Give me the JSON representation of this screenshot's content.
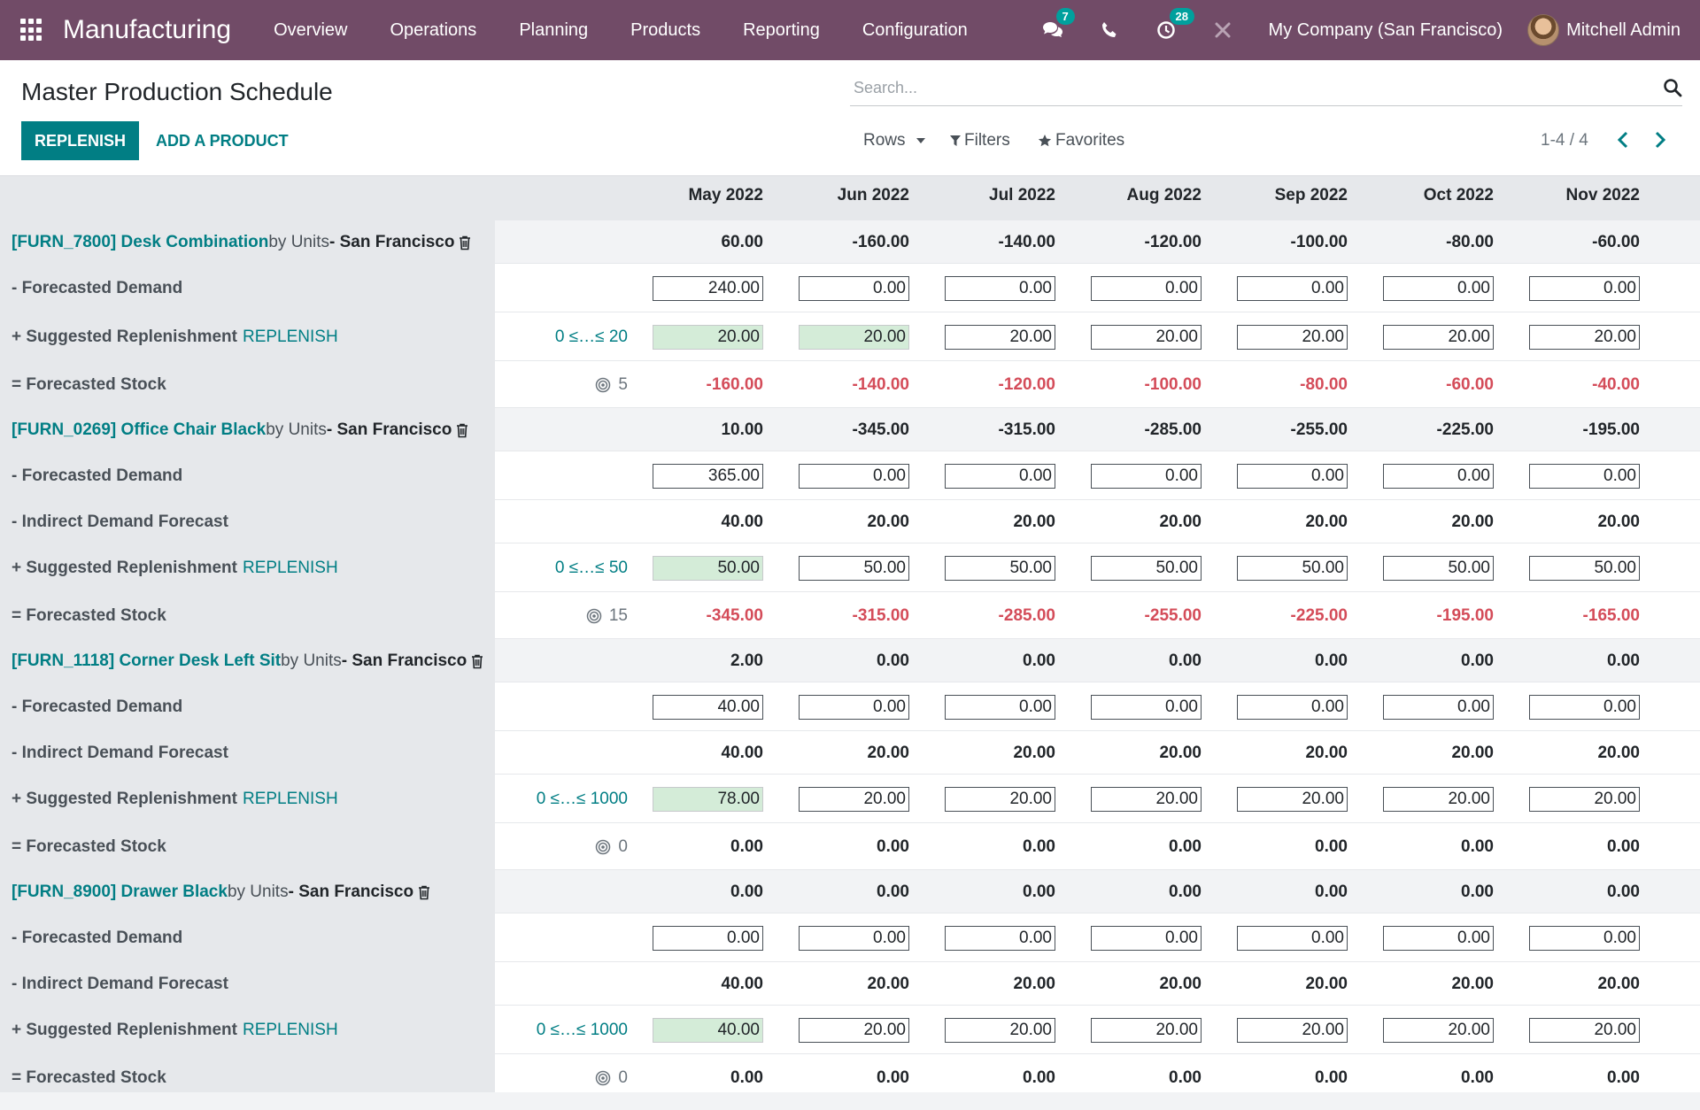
{
  "app": {
    "brand": "Manufacturing"
  },
  "menu": [
    "Overview",
    "Operations",
    "Planning",
    "Products",
    "Reporting",
    "Configuration"
  ],
  "systray": {
    "messages_badge": "7",
    "activities_badge": "28",
    "company": "My Company (San Francisco)",
    "user": "Mitchell Admin"
  },
  "control": {
    "title": "Master Production Schedule",
    "replenish": "REPLENISH",
    "add_product": "ADD A PRODUCT",
    "search_placeholder": "Search...",
    "rows": "Rows",
    "filters": "Filters",
    "favorites": "Favorites",
    "pager": "1-4 / 4"
  },
  "months": [
    "May 2022",
    "Jun 2022",
    "Jul 2022",
    "Aug 2022",
    "Sep 2022",
    "Oct 2022",
    "Nov 2022"
  ],
  "labels": {
    "by_units": "by Units",
    "location": "- San Francisco",
    "forecasted_demand": "- Forecasted Demand",
    "indirect_demand": "- Indirect Demand Forecast",
    "suggested": "+ Suggested Replenishment",
    "replenish_link": "REPLENISH",
    "forecasted_stock": "= Forecasted Stock"
  },
  "products": [
    {
      "code": "[FURN_7800] Desk Combination",
      "header_values": [
        "60.00",
        "-160.00",
        "-140.00",
        "-120.00",
        "-100.00",
        "-80.00",
        "-60.00"
      ],
      "demand": [
        "240.00",
        "0.00",
        "0.00",
        "0.00",
        "0.00",
        "0.00",
        "0.00"
      ],
      "indirect": null,
      "range": "0 ≤…≤ 20",
      "replenishment": [
        "20.00",
        "20.00",
        "20.00",
        "20.00",
        "20.00",
        "20.00",
        "20.00"
      ],
      "replenishment_green": [
        true,
        true,
        false,
        false,
        false,
        false,
        false
      ],
      "safety_stock": "5",
      "stock": [
        "-160.00",
        "-140.00",
        "-120.00",
        "-100.00",
        "-80.00",
        "-60.00",
        "-40.00"
      ]
    },
    {
      "code": "[FURN_0269] Office Chair Black",
      "header_values": [
        "10.00",
        "-345.00",
        "-315.00",
        "-285.00",
        "-255.00",
        "-225.00",
        "-195.00"
      ],
      "demand": [
        "365.00",
        "0.00",
        "0.00",
        "0.00",
        "0.00",
        "0.00",
        "0.00"
      ],
      "indirect": [
        "40.00",
        "20.00",
        "20.00",
        "20.00",
        "20.00",
        "20.00",
        "20.00"
      ],
      "range": "0 ≤…≤ 50",
      "replenishment": [
        "50.00",
        "50.00",
        "50.00",
        "50.00",
        "50.00",
        "50.00",
        "50.00"
      ],
      "replenishment_green": [
        true,
        false,
        false,
        false,
        false,
        false,
        false
      ],
      "safety_stock": "15",
      "stock": [
        "-345.00",
        "-315.00",
        "-285.00",
        "-255.00",
        "-225.00",
        "-195.00",
        "-165.00"
      ]
    },
    {
      "code": "[FURN_1118] Corner Desk Left Sit",
      "header_values": [
        "2.00",
        "0.00",
        "0.00",
        "0.00",
        "0.00",
        "0.00",
        "0.00"
      ],
      "demand": [
        "40.00",
        "0.00",
        "0.00",
        "0.00",
        "0.00",
        "0.00",
        "0.00"
      ],
      "indirect": [
        "40.00",
        "20.00",
        "20.00",
        "20.00",
        "20.00",
        "20.00",
        "20.00"
      ],
      "range": "0 ≤…≤ 1000",
      "replenishment": [
        "78.00",
        "20.00",
        "20.00",
        "20.00",
        "20.00",
        "20.00",
        "20.00"
      ],
      "replenishment_green": [
        true,
        false,
        false,
        false,
        false,
        false,
        false
      ],
      "safety_stock": "0",
      "stock": [
        "0.00",
        "0.00",
        "0.00",
        "0.00",
        "0.00",
        "0.00",
        "0.00"
      ]
    },
    {
      "code": "[FURN_8900] Drawer Black",
      "header_values": [
        "0.00",
        "0.00",
        "0.00",
        "0.00",
        "0.00",
        "0.00",
        "0.00"
      ],
      "demand": [
        "0.00",
        "0.00",
        "0.00",
        "0.00",
        "0.00",
        "0.00",
        "0.00"
      ],
      "indirect": [
        "40.00",
        "20.00",
        "20.00",
        "20.00",
        "20.00",
        "20.00",
        "20.00"
      ],
      "range": "0 ≤…≤ 1000",
      "replenishment": [
        "40.00",
        "20.00",
        "20.00",
        "20.00",
        "20.00",
        "20.00",
        "20.00"
      ],
      "replenishment_green": [
        true,
        false,
        false,
        false,
        false,
        false,
        false
      ],
      "safety_stock": "0",
      "stock": [
        "0.00",
        "0.00",
        "0.00",
        "0.00",
        "0.00",
        "0.00",
        "0.00"
      ]
    }
  ],
  "icons": {
    "apps": "apps-grid-icon",
    "messages": "chat-icon",
    "phone": "phone-icon",
    "activities": "clock-icon",
    "tools": "debug-tools-icon",
    "search": "search-icon",
    "trash": "trash-icon",
    "target": "target-icon"
  },
  "colors": {
    "brand": "#714b67",
    "primary": "#017e84",
    "negative": "#d44c59",
    "suggested_bg": "#d4ecd8"
  }
}
